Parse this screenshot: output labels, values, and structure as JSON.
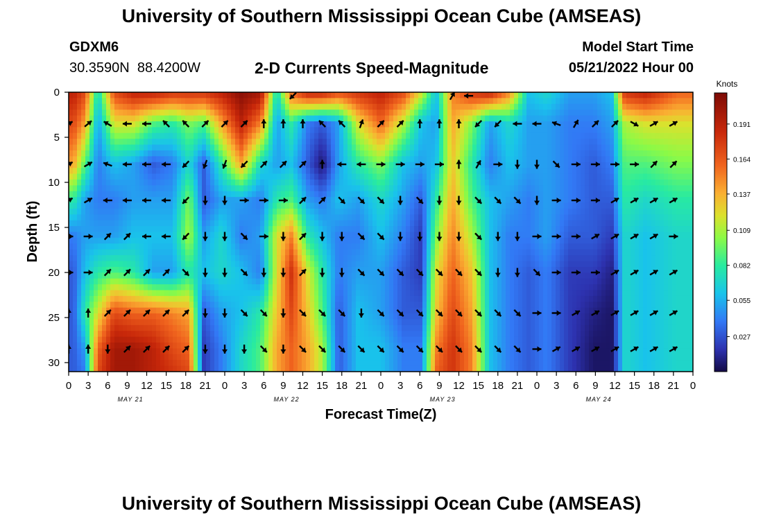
{
  "chart_data": {
    "type": "heatmap",
    "title": "University of Southern Mississippi Ocean Cube (AMSEAS)",
    "station_id": "GDXM6",
    "station_coords": "30.3590N  88.4200W",
    "subtitle": "2-D Currents Speed-Magnitude",
    "start_label": "Model Start Time",
    "start_value": "05/21/2022 Hour 00",
    "xlabel": "Forecast Time(Z)",
    "ylabel": "Depth (ft)",
    "xlim": [
      0,
      96
    ],
    "ylim": [
      31,
      0
    ],
    "x_tick_labels": [
      "0",
      "3",
      "6",
      "9",
      "12",
      "15",
      "18",
      "21",
      "0",
      "3",
      "6",
      "9",
      "12",
      "15",
      "18",
      "21",
      "0",
      "3",
      "6",
      "9",
      "12",
      "15",
      "18",
      "21",
      "0",
      "3",
      "6",
      "9",
      "12",
      "15",
      "18",
      "21",
      "0"
    ],
    "y_tick_labels": [
      "0",
      "5",
      "10",
      "15",
      "20",
      "25",
      "30"
    ],
    "day_labels": [
      "MAY 21",
      "MAY 22",
      "MAY 23",
      "MAY 24"
    ],
    "colorbar": {
      "label": "Knots",
      "ticks": [
        "0.191",
        "0.164",
        "0.137",
        "0.109",
        "0.082",
        "0.055",
        "0.027"
      ],
      "tick_values": [
        0.191,
        0.164,
        0.137,
        0.109,
        0.082,
        0.055,
        0.027
      ],
      "min": 0.0,
      "max": 0.215
    },
    "depth_levels_ft": [
      0,
      3.5,
      8,
      12,
      16,
      20,
      24.5,
      28.5,
      31
    ],
    "time_bands": [
      {
        "t": [
          0,
          1.5
        ],
        "speed": [
          0.19,
          0.17,
          0.14,
          0.08,
          0.04,
          0.03,
          0.03,
          0.03,
          0.03
        ]
      },
      {
        "t": [
          1.5,
          3.5
        ],
        "speed": [
          0.17,
          0.14,
          0.09,
          0.05,
          0.05,
          0.06,
          0.08,
          0.05,
          0.04
        ]
      },
      {
        "t": [
          3.5,
          5.5
        ],
        "speed": [
          0.07,
          0.05,
          0.04,
          0.04,
          0.05,
          0.08,
          0.12,
          0.16,
          0.17
        ]
      },
      {
        "t": [
          5.5,
          8.5
        ],
        "speed": [
          0.17,
          0.12,
          0.06,
          0.04,
          0.05,
          0.09,
          0.17,
          0.2,
          0.2
        ]
      },
      {
        "t": [
          8.5,
          11.5
        ],
        "speed": [
          0.19,
          0.12,
          0.05,
          0.05,
          0.06,
          0.08,
          0.16,
          0.2,
          0.2
        ]
      },
      {
        "t": [
          11.5,
          14.5
        ],
        "speed": [
          0.19,
          0.09,
          0.03,
          0.05,
          0.06,
          0.05,
          0.16,
          0.19,
          0.19
        ]
      },
      {
        "t": [
          14.5,
          17.5
        ],
        "speed": [
          0.18,
          0.08,
          0.04,
          0.05,
          0.06,
          0.05,
          0.15,
          0.17,
          0.18
        ]
      },
      {
        "t": [
          17.5,
          19.5
        ],
        "speed": [
          0.18,
          0.1,
          0.07,
          0.1,
          0.11,
          0.08,
          0.14,
          0.16,
          0.17
        ]
      },
      {
        "t": [
          19.5,
          22
        ],
        "speed": [
          0.18,
          0.09,
          0.03,
          0.03,
          0.05,
          0.06,
          0.03,
          0.02,
          0.02
        ]
      },
      {
        "t": [
          22,
          25
        ],
        "speed": [
          0.19,
          0.14,
          0.08,
          0.05,
          0.07,
          0.07,
          0.05,
          0.04,
          0.04
        ]
      },
      {
        "t": [
          25,
          28
        ],
        "speed": [
          0.21,
          0.19,
          0.14,
          0.05,
          0.04,
          0.06,
          0.06,
          0.07,
          0.07
        ]
      },
      {
        "t": [
          28,
          31
        ],
        "speed": [
          0.2,
          0.15,
          0.07,
          0.04,
          0.05,
          0.04,
          0.08,
          0.09,
          0.09
        ]
      },
      {
        "t": [
          31,
          33
        ],
        "speed": [
          0.07,
          0.05,
          0.05,
          0.08,
          0.12,
          0.12,
          0.13,
          0.14,
          0.14
        ]
      },
      {
        "t": [
          33,
          35.5
        ],
        "speed": [
          0.16,
          0.08,
          0.06,
          0.09,
          0.15,
          0.18,
          0.17,
          0.16,
          0.16
        ]
      },
      {
        "t": [
          35.5,
          38
        ],
        "speed": [
          0.19,
          0.04,
          0.03,
          0.05,
          0.08,
          0.12,
          0.13,
          0.14,
          0.14
        ]
      },
      {
        "t": [
          38,
          40
        ],
        "speed": [
          0.19,
          0.03,
          0.005,
          0.04,
          0.06,
          0.08,
          0.09,
          0.11,
          0.11
        ]
      },
      {
        "t": [
          40,
          43
        ],
        "speed": [
          0.17,
          0.05,
          0.05,
          0.06,
          0.04,
          0.04,
          0.03,
          0.03,
          0.03
        ]
      },
      {
        "t": [
          43,
          46
        ],
        "speed": [
          0.18,
          0.12,
          0.08,
          0.05,
          0.04,
          0.05,
          0.06,
          0.06,
          0.06
        ]
      },
      {
        "t": [
          46,
          50
        ],
        "speed": [
          0.19,
          0.16,
          0.1,
          0.07,
          0.06,
          0.05,
          0.05,
          0.06,
          0.06
        ]
      },
      {
        "t": [
          50,
          53
        ],
        "speed": [
          0.17,
          0.11,
          0.06,
          0.05,
          0.04,
          0.03,
          0.03,
          0.04,
          0.04
        ]
      },
      {
        "t": [
          53,
          55.5
        ],
        "speed": [
          0.12,
          0.06,
          0.05,
          0.03,
          0.02,
          0.02,
          0.03,
          0.04,
          0.04
        ]
      },
      {
        "t": [
          55.5,
          57.5
        ],
        "speed": [
          0.06,
          0.05,
          0.06,
          0.08,
          0.1,
          0.12,
          0.13,
          0.15,
          0.16
        ]
      },
      {
        "t": [
          57.5,
          60.5
        ],
        "speed": [
          0.15,
          0.14,
          0.13,
          0.14,
          0.15,
          0.16,
          0.17,
          0.18,
          0.18
        ]
      },
      {
        "t": [
          60.5,
          63.5
        ],
        "speed": [
          0.18,
          0.1,
          0.08,
          0.09,
          0.11,
          0.13,
          0.14,
          0.15,
          0.15
        ]
      },
      {
        "t": [
          63.5,
          66
        ],
        "speed": [
          0.19,
          0.05,
          0.04,
          0.06,
          0.06,
          0.06,
          0.06,
          0.06,
          0.06
        ]
      },
      {
        "t": [
          66,
          69.5
        ],
        "speed": [
          0.15,
          0.07,
          0.06,
          0.05,
          0.04,
          0.04,
          0.04,
          0.04,
          0.04
        ]
      },
      {
        "t": [
          69.5,
          72
        ],
        "speed": [
          0.06,
          0.05,
          0.05,
          0.04,
          0.04,
          0.03,
          0.03,
          0.03,
          0.03
        ]
      },
      {
        "t": [
          72,
          75
        ],
        "speed": [
          0.07,
          0.05,
          0.05,
          0.05,
          0.05,
          0.04,
          0.04,
          0.04,
          0.04
        ]
      },
      {
        "t": [
          75,
          79
        ],
        "speed": [
          0.05,
          0.04,
          0.04,
          0.04,
          0.03,
          0.02,
          0.02,
          0.02,
          0.02
        ]
      },
      {
        "t": [
          79,
          82.5
        ],
        "speed": [
          0.05,
          0.04,
          0.03,
          0.03,
          0.03,
          0.02,
          0.01,
          0.005,
          0.005
        ]
      },
      {
        "t": [
          82.5,
          84.5
        ],
        "speed": [
          0.06,
          0.05,
          0.04,
          0.03,
          0.02,
          0.01,
          0.005,
          0.005,
          0.005
        ]
      },
      {
        "t": [
          84.5,
          86.5
        ],
        "speed": [
          0.18,
          0.11,
          0.09,
          0.08,
          0.07,
          0.07,
          0.07,
          0.07,
          0.07
        ]
      },
      {
        "t": [
          86.5,
          91
        ],
        "speed": [
          0.19,
          0.12,
          0.09,
          0.07,
          0.06,
          0.06,
          0.06,
          0.06,
          0.06
        ]
      },
      {
        "t": [
          91,
          96
        ],
        "speed": [
          0.16,
          0.12,
          0.1,
          0.08,
          0.07,
          0.07,
          0.07,
          0.07,
          0.07
        ]
      }
    ],
    "vector_depths_ft": [
      3.5,
      8,
      12,
      16,
      20,
      24.5,
      28.5
    ],
    "vector_times_h": [
      0,
      3,
      6,
      9,
      12,
      15,
      18,
      21,
      24,
      27,
      30,
      33,
      36,
      39,
      42,
      45,
      48,
      51,
      54,
      57,
      60,
      63,
      66,
      69,
      72,
      75,
      78,
      81,
      84,
      87,
      90,
      93
    ],
    "vector_directions_deg": [
      [
        60,
        50,
        300,
        270,
        270,
        315,
        315,
        45,
        45,
        45,
        0,
        0,
        0,
        315,
        315,
        20,
        45,
        45,
        0,
        0,
        0,
        225,
        225,
        270,
        270,
        290,
        30,
        45,
        45,
        120,
        60,
        60
      ],
      [
        60,
        60,
        290,
        270,
        270,
        270,
        225,
        200,
        200,
        225,
        45,
        45,
        45,
        0,
        270,
        270,
        90,
        90,
        90,
        90,
        0,
        30,
        90,
        180,
        180,
        135,
        90,
        90,
        90,
        90,
        45,
        45
      ],
      [
        60,
        60,
        270,
        270,
        270,
        270,
        225,
        180,
        180,
        90,
        90,
        90,
        45,
        45,
        135,
        135,
        135,
        180,
        135,
        180,
        180,
        135,
        135,
        135,
        180,
        90,
        90,
        90,
        60,
        60,
        60,
        60
      ],
      [
        90,
        90,
        45,
        45,
        270,
        270,
        225,
        180,
        180,
        135,
        90,
        180,
        45,
        180,
        180,
        135,
        135,
        180,
        180,
        180,
        180,
        135,
        180,
        180,
        90,
        90,
        90,
        60,
        60,
        60,
        60,
        90
      ],
      [
        90,
        90,
        45,
        45,
        45,
        45,
        135,
        180,
        180,
        135,
        180,
        180,
        45,
        180,
        180,
        135,
        135,
        135,
        135,
        135,
        135,
        135,
        180,
        180,
        135,
        90,
        90,
        90,
        60,
        60,
        60,
        60
      ],
      [
        0,
        0,
        45,
        45,
        45,
        45,
        45,
        180,
        180,
        135,
        135,
        180,
        135,
        135,
        135,
        180,
        135,
        135,
        135,
        135,
        135,
        135,
        135,
        135,
        90,
        90,
        60,
        60,
        60,
        60,
        60,
        60
      ],
      [
        0,
        0,
        180,
        45,
        45,
        45,
        45,
        180,
        180,
        180,
        135,
        180,
        135,
        135,
        135,
        135,
        135,
        135,
        135,
        135,
        135,
        135,
        135,
        135,
        90,
        60,
        60,
        60,
        60,
        60,
        60,
        60
      ]
    ],
    "surface_vectors": [
      {
        "t": 34.5,
        "depth": 0.4,
        "dir": 225
      },
      {
        "t": 59,
        "depth": 0.4,
        "dir": 30
      },
      {
        "t": 61.5,
        "depth": 0.4,
        "dir": 270
      }
    ]
  }
}
